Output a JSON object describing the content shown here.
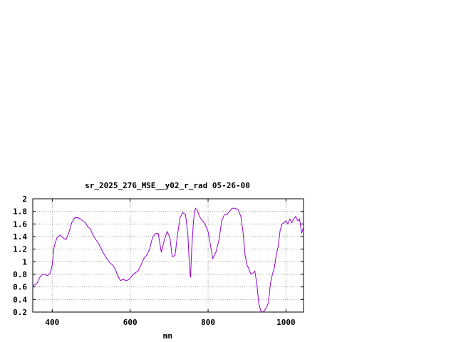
{
  "chart_data": {
    "type": "line",
    "title": "sr_2025_276_MSE__y02_r_rad 05-26-00",
    "xlabel": "nm",
    "ylabel": "",
    "xlim": [
      350,
      1045
    ],
    "ylim": [
      0.2,
      2.0
    ],
    "xticks": [
      400,
      600,
      800,
      1000
    ],
    "xtick_labels": [
      "400",
      "600",
      "800",
      "1000"
    ],
    "yticks": [
      0.2,
      0.4,
      0.6,
      0.8,
      1.0,
      1.2,
      1.4,
      1.6,
      1.8,
      2.0
    ],
    "ytick_labels": [
      "0.2",
      "0.4",
      "0.6",
      "0.8",
      "1",
      "1.2",
      "1.4",
      "1.6",
      "1.8",
      "2"
    ],
    "grid": true,
    "line_color": "#9400d3",
    "series": [
      {
        "name": "",
        "x": [
          350,
          360,
          368,
          375,
          382,
          388,
          395,
          400,
          405,
          412,
          420,
          428,
          435,
          442,
          450,
          458,
          465,
          472,
          478,
          485,
          492,
          498,
          505,
          512,
          520,
          530,
          540,
          548,
          555,
          562,
          568,
          575,
          582,
          590,
          598,
          605,
          612,
          620,
          628,
          635,
          642,
          650,
          657,
          665,
          672,
          680,
          688,
          695,
          702,
          708,
          715,
          722,
          728,
          735,
          742,
          748,
          752,
          755,
          758,
          762,
          765,
          768,
          772,
          778,
          782,
          786,
          792,
          800,
          805,
          812,
          820,
          828,
          835,
          842,
          848,
          855,
          862,
          870,
          878,
          884,
          890,
          895,
          900,
          905,
          910,
          915,
          920,
          925,
          930,
          935,
          940,
          945,
          950,
          955,
          960,
          965,
          970,
          975,
          980,
          985,
          990,
          995,
          1000,
          1005,
          1010,
          1015,
          1020,
          1025,
          1030,
          1035,
          1040,
          1045
        ],
        "y": [
          0.62,
          0.65,
          0.75,
          0.8,
          0.8,
          0.78,
          0.82,
          0.95,
          1.25,
          1.38,
          1.42,
          1.38,
          1.35,
          1.45,
          1.62,
          1.7,
          1.7,
          1.68,
          1.65,
          1.62,
          1.55,
          1.52,
          1.42,
          1.35,
          1.28,
          1.15,
          1.05,
          0.98,
          0.95,
          0.88,
          0.78,
          0.7,
          0.72,
          0.7,
          0.72,
          0.78,
          0.82,
          0.85,
          0.95,
          1.05,
          1.1,
          1.2,
          1.38,
          1.45,
          1.45,
          1.15,
          1.35,
          1.48,
          1.38,
          1.08,
          1.1,
          1.45,
          1.7,
          1.78,
          1.75,
          1.45,
          0.95,
          0.75,
          1.2,
          1.6,
          1.8,
          1.85,
          1.82,
          1.72,
          1.68,
          1.65,
          1.6,
          1.48,
          1.3,
          1.05,
          1.15,
          1.35,
          1.65,
          1.75,
          1.75,
          1.8,
          1.85,
          1.85,
          1.82,
          1.72,
          1.45,
          1.1,
          0.95,
          0.88,
          0.8,
          0.82,
          0.85,
          0.65,
          0.35,
          0.22,
          0.2,
          0.22,
          0.28,
          0.35,
          0.65,
          0.8,
          0.9,
          1.1,
          1.25,
          1.5,
          1.6,
          1.62,
          1.65,
          1.6,
          1.68,
          1.62,
          1.68,
          1.72,
          1.65,
          1.68,
          1.45,
          1.55
        ]
      }
    ]
  }
}
